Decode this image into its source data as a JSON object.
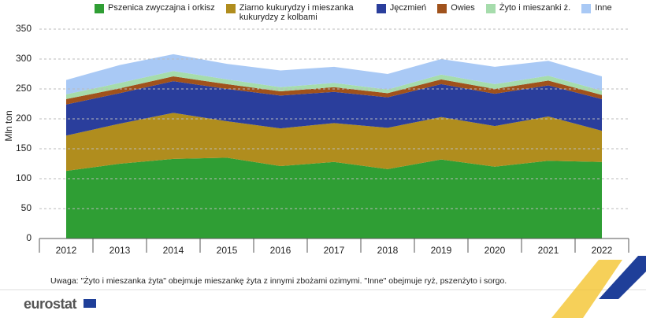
{
  "chart_data": {
    "type": "stacked_area",
    "y_label": "Mln ton",
    "categories": [
      "2012",
      "2013",
      "2014",
      "2015",
      "2016",
      "2017",
      "2018",
      "2019",
      "2020",
      "2021",
      "2022"
    ],
    "series": [
      {
        "name": "Pszenica zwyczajna i orkisz",
        "color": "#2f9e34",
        "values": [
          113,
          125,
          133,
          135,
          121,
          128,
          116,
          132,
          120,
          130,
          128
        ]
      },
      {
        "name": "Ziarno kukurydzy i mieszanka kukurydzy z kolbami",
        "color": "#b08d1e",
        "values": [
          59,
          67,
          77,
          61,
          63,
          65,
          69,
          71,
          68,
          74,
          52
        ]
      },
      {
        "name": "Jęczmień",
        "color": "#2a3e9c",
        "values": [
          52,
          51,
          53,
          54,
          55,
          52,
          51,
          55,
          54,
          52,
          53
        ]
      },
      {
        "name": "Owies",
        "color": "#a0521c",
        "values": [
          9,
          8,
          8,
          8,
          7,
          8,
          7,
          8,
          8,
          8,
          7
        ]
      },
      {
        "name": "Żyto i mieszanki ż.",
        "color": "#a6dcac",
        "values": [
          8,
          9,
          9,
          8,
          7,
          7,
          6,
          8,
          8,
          8,
          7
        ]
      },
      {
        "name": "Inne",
        "color": "#a9c9f5",
        "values": [
          24,
          30,
          28,
          26,
          28,
          27,
          26,
          26,
          29,
          25,
          24
        ]
      }
    ],
    "ylim": [
      0,
      350
    ],
    "yticks": [
      0,
      50,
      100,
      150,
      200,
      250,
      300,
      350
    ],
    "grid": true,
    "footnote": "Uwaga: \"Żyto i mieszanka żyta\" obejmuje mieszankę żyta z innymi zbożami ozimymi. \"Inne\" obejmuje ryż, pszenżyto i sorgo.",
    "logo": "eurostat"
  }
}
